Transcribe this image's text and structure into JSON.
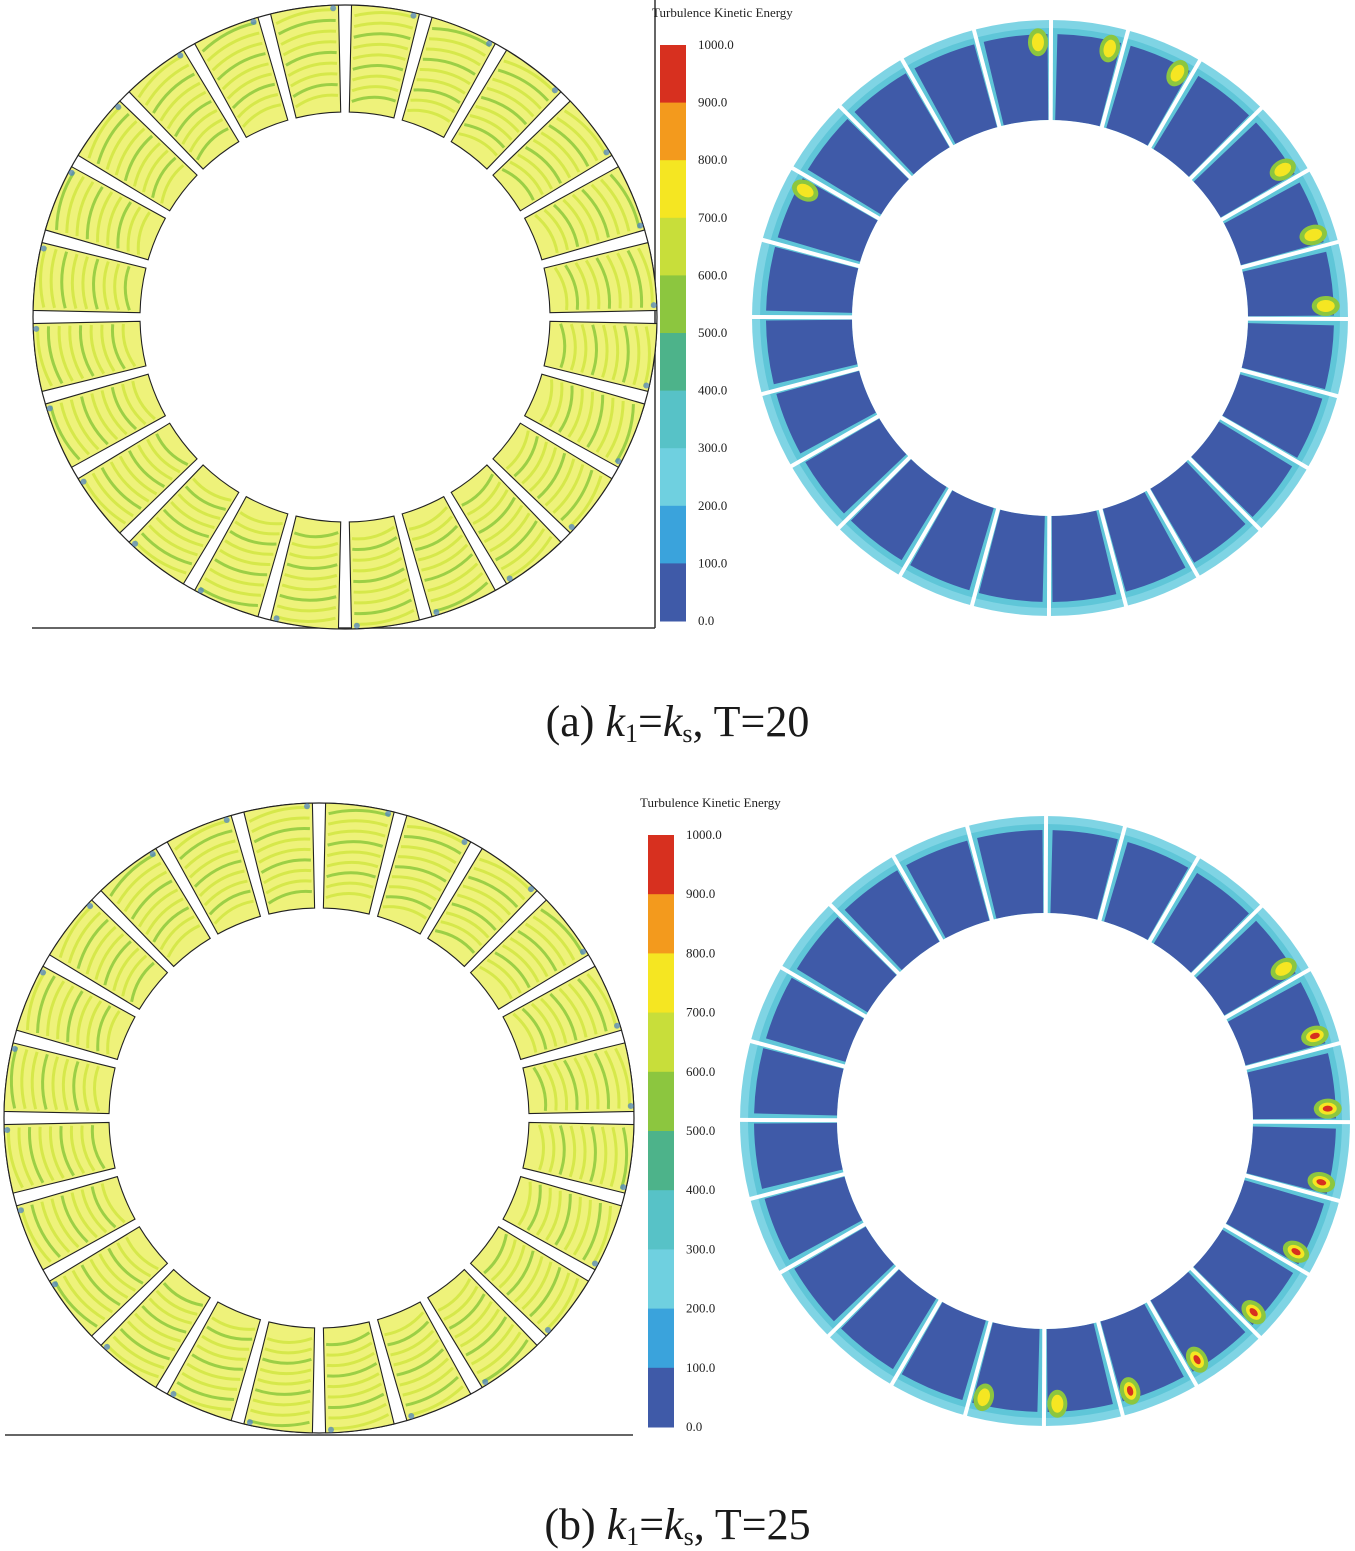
{
  "figure": {
    "panels": [
      {
        "id": "a",
        "caption": {
          "prefix": "(a) ",
          "k1": "k",
          "k1_sub": "1",
          "eq": "=",
          "ks": "k",
          "ks_sub": "s",
          "suffix": ", T=20"
        },
        "legend": {
          "title": "Turbulence Kinetic Energy",
          "ticks": [
            "1000.0",
            "900.0",
            "800.0",
            "700.0",
            "600.0",
            "500.0",
            "400.0",
            "300.0",
            "200.0",
            "100.0",
            "0.0"
          ]
        }
      },
      {
        "id": "b",
        "caption": {
          "prefix": "(b) ",
          "k1": "k",
          "k1_sub": "1",
          "eq": "=",
          "ks": "k",
          "ks_sub": "s",
          "suffix": ", T=25"
        },
        "legend": {
          "title": "Turbulence Kinetic Energy",
          "ticks": [
            "1000.0",
            "900.0",
            "800.0",
            "700.0",
            "600.0",
            "500.0",
            "400.0",
            "300.0",
            "200.0",
            "100.0",
            "0.0"
          ]
        }
      }
    ],
    "colorbar": [
      "#d7301f",
      "#f39a1d",
      "#f5e622",
      "#c8de3a",
      "#8cc63f",
      "#4db38a",
      "#57c2c7",
      "#6fd0e0",
      "#3aa3dc",
      "#3f5aa8"
    ],
    "colors": {
      "blade": "#3f5aa8",
      "streamline": "#d6e84a",
      "streamline_alt": "#9ccf45",
      "ring_low": "#6fd0e0",
      "hot": "#d7301f"
    }
  }
}
